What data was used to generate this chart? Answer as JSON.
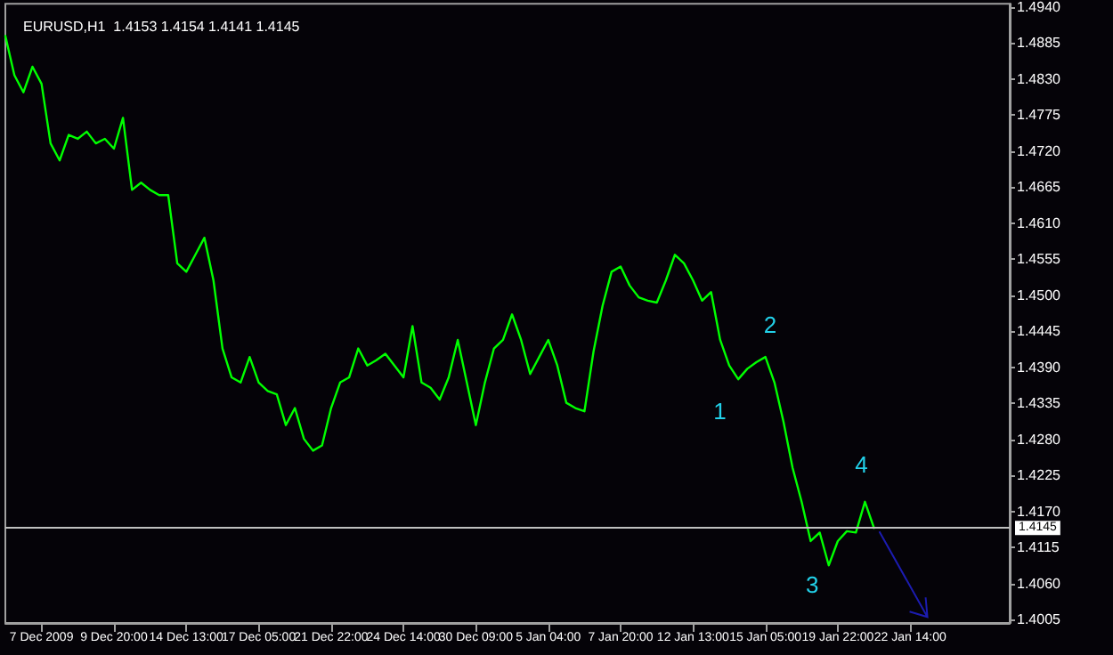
{
  "chart_data": {
    "type": "line",
    "title": "EURUSD,H1  1.4153 1.4154 1.4141 1.4145",
    "categories": [
      null,
      null,
      null,
      null,
      "7 Dec 2009",
      null,
      null,
      null,
      null,
      null,
      null,
      null,
      "9 Dec 20:00",
      null,
      null,
      null,
      null,
      null,
      null,
      null,
      "14 Dec 13:00",
      null,
      null,
      null,
      null,
      null,
      null,
      null,
      "17 Dec 05:00",
      null,
      null,
      null,
      null,
      null,
      null,
      null,
      "21 Dec 22:00",
      null,
      null,
      null,
      null,
      null,
      null,
      null,
      "24 Dec 14:00",
      null,
      null,
      null,
      null,
      null,
      null,
      null,
      "30 Dec 09:00",
      null,
      null,
      null,
      null,
      null,
      null,
      null,
      "5 Jan 04:00",
      null,
      null,
      null,
      null,
      null,
      null,
      null,
      "7 Jan 20:00",
      null,
      null,
      null,
      null,
      null,
      null,
      null,
      "12 Jan 13:00",
      null,
      null,
      null,
      null,
      null,
      null,
      null,
      "15 Jan 05:00",
      null,
      null,
      null,
      null,
      null,
      null,
      null,
      "19 Jan 22:00",
      null,
      null,
      null,
      null,
      null,
      null,
      null,
      "22 Jan 14:00",
      null,
      null,
      null,
      null,
      null,
      null,
      null,
      null,
      null,
      null,
      null
    ],
    "series": [
      {
        "color": "#00ff00",
        "values": [
          1.4896,
          1.4836,
          1.481,
          1.4849,
          1.4823,
          1.4732,
          1.4706,
          1.4745,
          1.4739,
          1.475,
          1.4732,
          1.4739,
          1.4724,
          1.4771,
          1.4661,
          1.4672,
          1.4661,
          1.4653,
          1.4653,
          1.4549,
          1.4536,
          1.4562,
          1.4588,
          1.4523,
          1.4419,
          1.4375,
          1.4367,
          1.4406,
          1.4367,
          1.4354,
          1.4349,
          1.4302,
          1.4328,
          1.4281,
          1.4263,
          1.4271,
          1.4328,
          1.4367,
          1.4375,
          1.4419,
          1.4393,
          1.4401,
          1.4411,
          1.4393,
          1.4375,
          1.4453,
          1.4367,
          1.4359,
          1.4341,
          1.4375,
          1.4432,
          1.4367,
          1.4302,
          1.4367,
          1.4419,
          1.4432,
          1.4471,
          1.4432,
          1.438,
          1.4406,
          1.4432,
          1.4393,
          1.4336,
          1.4328,
          1.4323,
          1.4414,
          1.4484,
          1.4536,
          1.4544,
          1.4515,
          1.4497,
          1.4492,
          1.4489,
          1.4523,
          1.4562,
          1.4549,
          1.4523,
          1.4492,
          1.4505,
          1.4432,
          1.4393,
          1.4372,
          1.4388,
          1.4398,
          1.4406,
          1.4367,
          1.4307,
          1.4237,
          1.4185,
          1.4125,
          1.4138,
          1.4088,
          1.4125,
          1.414,
          1.4138,
          1.4185,
          1.4145,
          null,
          null,
          null,
          null,
          null,
          null,
          null,
          null,
          null,
          null,
          null,
          null,
          null,
          null,
          null
        ]
      }
    ],
    "annotations": [
      "1",
      "2",
      "3",
      "4"
    ],
    "ylim": [
      1.4,
      1.4945
    ],
    "yticks": [
      {
        "value": 1.4005,
        "label": "1.4005"
      },
      {
        "value": 1.406,
        "label": "1.4060"
      },
      {
        "value": 1.4115,
        "label": "1.4115"
      },
      {
        "value": 1.417,
        "label": "1.4170"
      },
      {
        "value": 1.4225,
        "label": "1.4225"
      },
      {
        "value": 1.428,
        "label": "1.4280"
      },
      {
        "value": 1.4335,
        "label": "1.4335"
      },
      {
        "value": 1.439,
        "label": "1.4390"
      },
      {
        "value": 1.4445,
        "label": "1.4445"
      },
      {
        "value": 1.45,
        "label": "1.4500"
      },
      {
        "value": 1.4555,
        "label": "1.4555"
      },
      {
        "value": 1.461,
        "label": "1.4610"
      },
      {
        "value": 1.4665,
        "label": "1.4665"
      },
      {
        "value": 1.472,
        "label": "1.4720"
      },
      {
        "value": 1.4775,
        "label": "1.4775"
      },
      {
        "value": 1.483,
        "label": "1.4830"
      },
      {
        "value": 1.4885,
        "label": "1.4885"
      },
      {
        "value": 1.494,
        "label": "1.4940"
      }
    ],
    "ref_lines": [
      {
        "axis": "y",
        "value": 1.4145,
        "label": "1.4145",
        "color": "#c0c0c0"
      }
    ],
    "grid": false,
    "marker": "none",
    "line_style": "solid"
  }
}
